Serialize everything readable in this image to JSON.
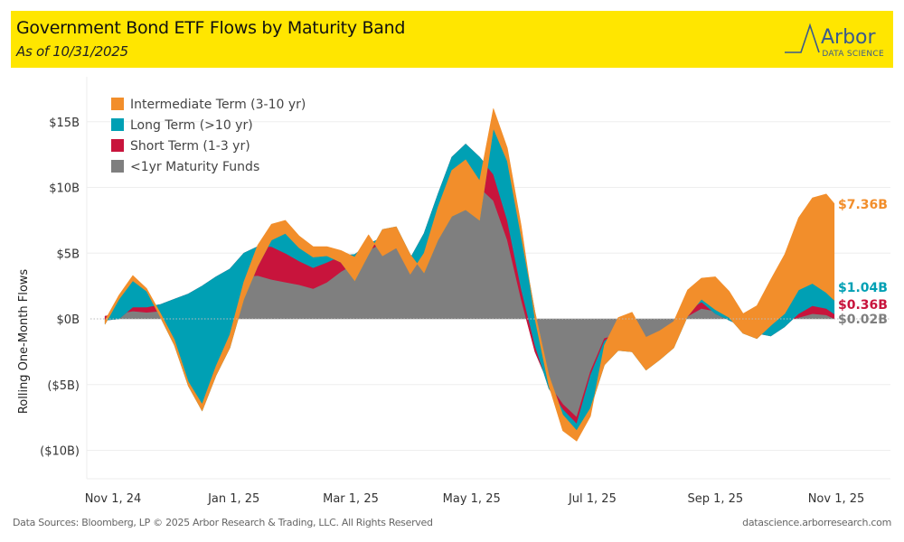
{
  "header": {
    "title": "Government Bond ETF Flows by Maturity Band",
    "subtitle": "As of 10/31/2025",
    "logo_text": "Arbor",
    "logo_subtext": "DATA SCIENCE"
  },
  "footer": {
    "source": "Data Sources: Bloomberg, LP © 2025 Arbor Research & Trading, LLC. All Rights Reserved",
    "website": "datascience.arborresearch.com"
  },
  "chart_data": {
    "type": "area",
    "stacked": true,
    "title": "Government Bond ETF Flows by Maturity Band",
    "subtitle": "As of 10/31/2025",
    "xlabel": "",
    "ylabel": "Rolling One-Month Flows",
    "ylim": [
      -12,
      18
    ],
    "y_ticks": [
      15,
      10,
      5,
      0,
      -5,
      -10
    ],
    "y_tick_labels": [
      "$15B",
      "$10B",
      "$5B",
      "$0B",
      "($5B)",
      "($10B)"
    ],
    "x_ticks": [
      "2024-11-01",
      "2025-01-01",
      "2025-03-01",
      "2025-05-01",
      "2025-07-01",
      "2025-09-01",
      "2025-11-01"
    ],
    "x_tick_labels": [
      "Nov 1, 24",
      "Jan 1, 25",
      "Mar 1, 25",
      "May 1, 25",
      "Jul 1, 25",
      "Sep 1, 25",
      "Nov 1, 25"
    ],
    "x_range": [
      "2024-10-14",
      "2025-11-20"
    ],
    "grid": true,
    "legend": "top-left",
    "unit": "$B",
    "x": [
      "2024-10-28",
      "2024-11-04",
      "2024-11-11",
      "2024-11-18",
      "2024-11-25",
      "2024-12-02",
      "2024-12-09",
      "2024-12-16",
      "2024-12-23",
      "2024-12-30",
      "2025-01-06",
      "2025-01-13",
      "2025-01-20",
      "2025-01-27",
      "2025-02-03",
      "2025-02-10",
      "2025-02-17",
      "2025-02-24",
      "2025-03-03",
      "2025-03-10",
      "2025-03-17",
      "2025-03-24",
      "2025-03-31",
      "2025-04-07",
      "2025-04-14",
      "2025-04-21",
      "2025-04-28",
      "2025-05-05",
      "2025-05-12",
      "2025-05-19",
      "2025-05-26",
      "2025-06-02",
      "2025-06-09",
      "2025-06-16",
      "2025-06-23",
      "2025-06-30",
      "2025-07-07",
      "2025-07-14",
      "2025-07-21",
      "2025-07-28",
      "2025-08-04",
      "2025-08-11",
      "2025-08-18",
      "2025-08-25",
      "2025-09-01",
      "2025-09-08",
      "2025-09-15",
      "2025-09-22",
      "2025-09-29",
      "2025-10-06",
      "2025-10-13",
      "2025-10-20",
      "2025-10-27",
      "2025-10-31"
    ],
    "series": [
      {
        "name": "<1yr Maturity Funds",
        "color": "#7f7f7f",
        "values": [
          0.2,
          0.4,
          0.6,
          0.5,
          0.6,
          1.0,
          1.6,
          2.1,
          2.6,
          3.0,
          3.2,
          3.3,
          3.0,
          2.8,
          2.6,
          2.3,
          2.8,
          3.6,
          4.2,
          5.2,
          5.8,
          5.5,
          3.8,
          5.5,
          7.5,
          9.5,
          10.5,
          10.0,
          9.0,
          6.0,
          1.5,
          -2.5,
          -5.0,
          -6.5,
          -7.5,
          -4.0,
          -1.5,
          -1.2,
          -1.5,
          -2.5,
          -2.0,
          -1.5,
          0.2,
          0.8,
          0.6,
          0.2,
          0.0,
          -0.3,
          -0.5,
          -0.2,
          0.1,
          0.4,
          0.3,
          0.02
        ]
      },
      {
        "name": "Short Term (1-3 yr)",
        "color": "#c8143c",
        "values": [
          -0.3,
          -0.4,
          0.3,
          0.4,
          0.5,
          0.5,
          0.3,
          0.4,
          0.6,
          0.8,
          1.8,
          2.2,
          2.5,
          2.2,
          1.8,
          1.6,
          1.5,
          1.2,
          0.7,
          0.5,
          0.4,
          0.3,
          0.8,
          1.0,
          2.0,
          2.8,
          2.8,
          2.3,
          2.0,
          1.5,
          0.8,
          0.5,
          -0.3,
          -0.4,
          -0.5,
          -0.3,
          -0.2,
          0.3,
          0.2,
          -0.6,
          -0.5,
          -0.4,
          0.4,
          0.5,
          -0.2,
          -0.3,
          -0.6,
          -0.8,
          -0.8,
          -0.4,
          0.3,
          0.6,
          0.5,
          0.36
        ]
      },
      {
        "name": "Long Term (>10 yr)",
        "color": "#00a0b4",
        "values": [
          -0.3,
          1.5,
          2.0,
          1.2,
          -1.0,
          -3.5,
          -7.0,
          -9.5,
          -7.5,
          -6.0,
          -3.5,
          -1.5,
          0.5,
          1.5,
          1.0,
          0.8,
          0.5,
          -0.5,
          -2.0,
          -0.8,
          0.6,
          1.2,
          0.3,
          -3.0,
          -3.5,
          -4.5,
          -5.0,
          -4.8,
          3.5,
          4.5,
          4.0,
          2.5,
          1.0,
          -0.4,
          -0.5,
          -2.5,
          -1.8,
          -1.5,
          -1.2,
          -0.8,
          -0.6,
          -0.3,
          -0.4,
          0.2,
          0.3,
          0.2,
          -0.5,
          -0.4,
          0.8,
          1.0,
          1.8,
          1.7,
          1.2,
          1.04
        ]
      },
      {
        "name": "Intermediate Term (3-10 yr)",
        "color": "#f28e2b",
        "values": [
          0.3,
          0.3,
          0.4,
          0.2,
          0.3,
          0.4,
          0.3,
          0.5,
          0.7,
          1.0,
          1.3,
          1.6,
          1.2,
          1.0,
          0.9,
          0.8,
          0.7,
          0.9,
          1.8,
          1.5,
          -2.0,
          -1.6,
          -1.5,
          1.5,
          2.5,
          3.5,
          3.8,
          3.0,
          1.5,
          1.0,
          0.8,
          -0.5,
          -0.8,
          -1.2,
          -0.8,
          -0.6,
          1.5,
          2.5,
          3.0,
          2.5,
          2.2,
          2.0,
          2.0,
          1.6,
          2.5,
          2.0,
          1.5,
          2.5,
          3.5,
          4.5,
          5.5,
          6.5,
          7.5,
          7.36
        ]
      }
    ],
    "end_labels": [
      {
        "series": "Intermediate Term (3-10 yr)",
        "label": "$7.36B",
        "color": "#f28e2b"
      },
      {
        "series": "Long Term (>10 yr)",
        "label": "$1.04B",
        "color": "#00a0b4"
      },
      {
        "series": "Short Term (1-3 yr)",
        "label": "$0.36B",
        "color": "#c8143c"
      },
      {
        "series": "<1yr Maturity Funds",
        "label": "$0.02B",
        "color": "#7f7f7f"
      }
    ],
    "legend_entries": [
      {
        "label": "Intermediate Term (3-10 yr)",
        "color": "#f28e2b"
      },
      {
        "label": "Long Term (>10 yr)",
        "color": "#00a0b4"
      },
      {
        "label": "Short Term (1-3 yr)",
        "color": "#c8143c"
      },
      {
        "label": "<1yr Maturity Funds",
        "color": "#7f7f7f"
      }
    ]
  }
}
